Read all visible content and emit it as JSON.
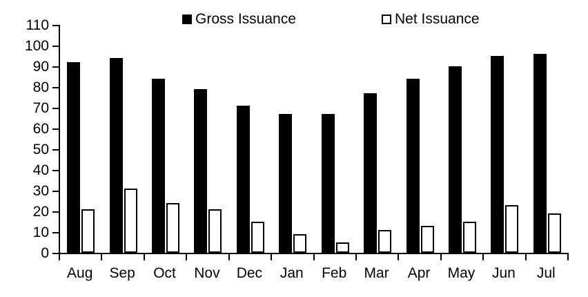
{
  "legend": {
    "gross_label": "Gross Issuance",
    "net_label": "Net Issuance"
  },
  "colors": {
    "gross_fill": "#000000",
    "net_fill": "#FFFFFF",
    "net_stroke": "#000000",
    "axis": "#000000",
    "background": "#FFFFFF"
  },
  "chart_data": {
    "type": "bar",
    "title": "",
    "xlabel": "",
    "ylabel": "",
    "categories": [
      "Aug",
      "Sep",
      "Oct",
      "Nov",
      "Dec",
      "Jan",
      "Feb",
      "Mar",
      "Apr",
      "May",
      "Jun",
      "Jul"
    ],
    "series": [
      {
        "name": "Gross Issuance",
        "fill": "#000000",
        "values": [
          92,
          94,
          84,
          79,
          71,
          67,
          67,
          77,
          84,
          90,
          95,
          96
        ]
      },
      {
        "name": "Net Issuance",
        "fill": "#FFFFFF",
        "stroke": "#000000",
        "values": [
          21,
          31,
          24,
          21,
          15,
          9,
          5,
          11,
          13,
          15,
          23,
          19
        ]
      }
    ],
    "ylim": [
      0,
      110
    ],
    "yticks": [
      0,
      10,
      20,
      30,
      40,
      50,
      60,
      70,
      80,
      90,
      100,
      110
    ],
    "grid": false,
    "legend_position": "top"
  }
}
